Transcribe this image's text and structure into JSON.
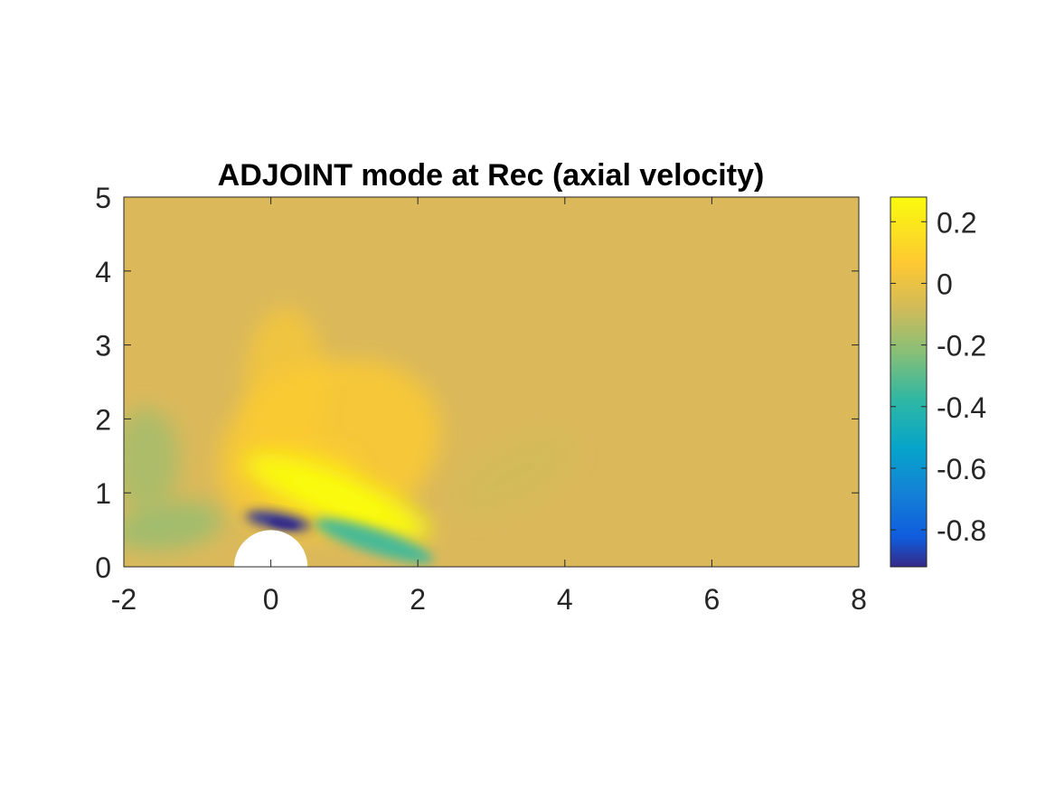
{
  "chart_data": {
    "type": "heatmap",
    "title": "ADJOINT mode at Rec (axial velocity)",
    "xlabel": "",
    "ylabel": "",
    "xlim": [
      -2,
      8
    ],
    "ylim": [
      0,
      5
    ],
    "xticks": [
      -2,
      0,
      2,
      4,
      6,
      8
    ],
    "yticks": [
      0,
      1,
      2,
      3,
      4,
      5
    ],
    "colorbar": {
      "colormap": "parula",
      "clim": [
        -0.92,
        0.28
      ],
      "ticks": [
        0.2,
        0,
        -0.2,
        -0.4,
        -0.6,
        -0.8
      ],
      "tick_labels": [
        "0.2",
        "0",
        "-0.2",
        "-0.4",
        "-0.6",
        "-0.8"
      ]
    },
    "background_value": 0.02,
    "obstacle": {
      "shape": "cylinder",
      "center": [
        0,
        0
      ],
      "radius": 0.5,
      "color": "#ffffff"
    },
    "features": [
      {
        "kind": "positive-lobe",
        "center": [
          0.9,
          0.95
        ],
        "value": 0.27
      },
      {
        "kind": "weak-positive-halo",
        "center": [
          0.8,
          1.6
        ],
        "value": 0.08
      },
      {
        "kind": "negative-core",
        "center": [
          0.1,
          0.62
        ],
        "value": -0.9
      },
      {
        "kind": "negative-tail",
        "center": [
          1.4,
          0.35
        ],
        "value": -0.35
      },
      {
        "kind": "weak-negative-upstream",
        "center": [
          -1.4,
          0.55
        ],
        "value": -0.2
      },
      {
        "kind": "weak-negative-wake",
        "center": [
          3.3,
          1.25
        ],
        "value": -0.08
      }
    ],
    "grid": false,
    "legend": "none"
  }
}
